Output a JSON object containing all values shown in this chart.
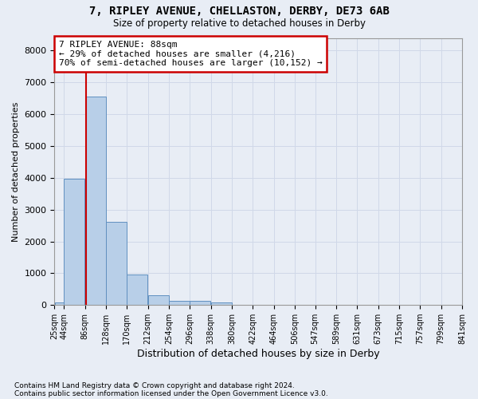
{
  "title1": "7, RIPLEY AVENUE, CHELLASTON, DERBY, DE73 6AB",
  "title2": "Size of property relative to detached houses in Derby",
  "xlabel": "Distribution of detached houses by size in Derby",
  "ylabel": "Number of detached properties",
  "footnote1": "Contains HM Land Registry data © Crown copyright and database right 2024.",
  "footnote2": "Contains public sector information licensed under the Open Government Licence v3.0.",
  "bin_edges": [
    25,
    44,
    86,
    128,
    170,
    212,
    254,
    296,
    338,
    380,
    422,
    464,
    506,
    547,
    589,
    631,
    673,
    715,
    757,
    799,
    841
  ],
  "bin_labels": [
    "25sqm",
    "44sqm",
    "86sqm",
    "128sqm",
    "170sqm",
    "212sqm",
    "254sqm",
    "296sqm",
    "338sqm",
    "380sqm",
    "422sqm",
    "464sqm",
    "506sqm",
    "547sqm",
    "589sqm",
    "631sqm",
    "673sqm",
    "715sqm",
    "757sqm",
    "799sqm",
    "841sqm"
  ],
  "bar_heights": [
    80,
    3980,
    6560,
    2620,
    960,
    305,
    130,
    120,
    80,
    0,
    0,
    0,
    0,
    0,
    0,
    0,
    0,
    0,
    0,
    0
  ],
  "bar_color": "#b8cfe8",
  "bar_edge_color": "#6090c0",
  "grid_color": "#d0d8e8",
  "bg_color": "#e8edf5",
  "property_line_x": 88,
  "property_line_color": "#cc0000",
  "annotation_text": "7 RIPLEY AVENUE: 88sqm\n← 29% of detached houses are smaller (4,216)\n70% of semi-detached houses are larger (10,152) →",
  "annotation_box_color": "#ffffff",
  "annotation_box_edge": "#cc0000",
  "ylim": [
    0,
    8400
  ],
  "yticks": [
    0,
    1000,
    2000,
    3000,
    4000,
    5000,
    6000,
    7000,
    8000
  ]
}
